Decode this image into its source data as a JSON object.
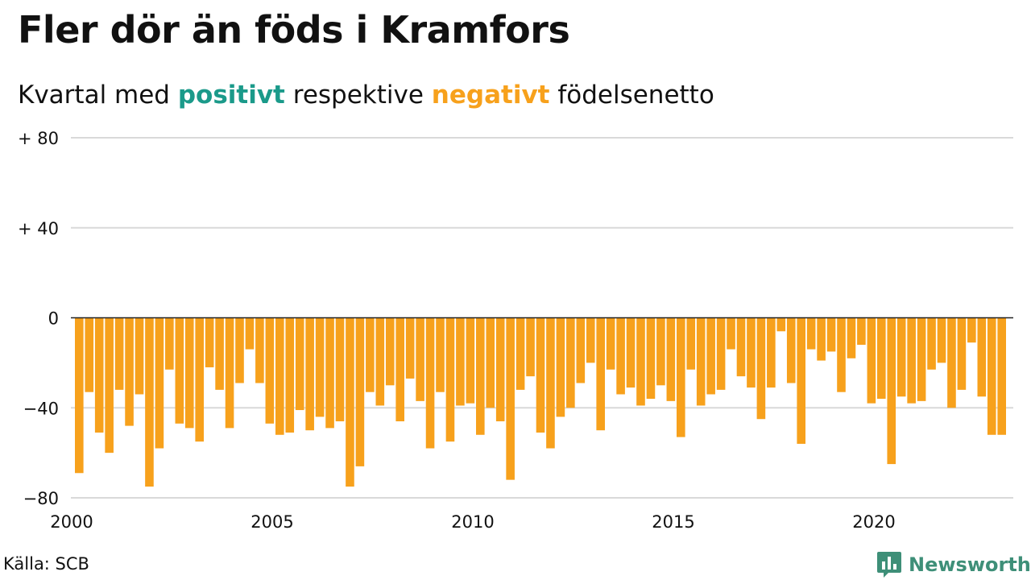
{
  "title": "Fler dör än föds i Kramfors",
  "subtitle": {
    "prefix": "Kvartal med",
    "positive_word": "positivt",
    "middle": "respektive",
    "negative_word": "negativt",
    "suffix": "födelsenetto"
  },
  "colors": {
    "positive": "#1b9a8a",
    "negative": "#f7a11c",
    "grid": "#d9d9d9",
    "zero_line": "#222222",
    "brand": "#3e8f78"
  },
  "source": "Källa: SCB",
  "brand": {
    "name": "Newsworthy",
    "icon": "bar-chart-speech-bubble-icon"
  },
  "chart_data": {
    "type": "bar",
    "ylim": [
      -80,
      80
    ],
    "y_ticks": [
      {
        "value": 80,
        "label": "+ 80"
      },
      {
        "value": 40,
        "label": "+ 40"
      },
      {
        "value": 0,
        "label": "0"
      },
      {
        "value": -40,
        "label": "−40"
      },
      {
        "value": -80,
        "label": "−80"
      }
    ],
    "x_ticks": [
      "2000",
      "2005",
      "2010",
      "2015",
      "2020"
    ],
    "x_start_year": 2000,
    "grid": true,
    "legend": "none",
    "values": [
      -69,
      -33,
      -51,
      -60,
      -32,
      -48,
      -34,
      -75,
      -58,
      -23,
      -47,
      -49,
      -55,
      -22,
      -32,
      -49,
      -29,
      -14,
      -29,
      -47,
      -52,
      -51,
      -41,
      -50,
      -44,
      -49,
      -46,
      -75,
      -66,
      -33,
      -39,
      -30,
      -46,
      -27,
      -37,
      -58,
      -33,
      -55,
      -39,
      -38,
      -52,
      -40,
      -46,
      -72,
      -32,
      -26,
      -51,
      -58,
      -44,
      -40,
      -29,
      -20,
      -50,
      -23,
      -34,
      -31,
      -39,
      -36,
      -30,
      -37,
      -53,
      -23,
      -39,
      -34,
      -32,
      -14,
      -26,
      -31,
      -45,
      -31,
      -6,
      -29,
      -56,
      -14,
      -19,
      -15,
      -33,
      -18,
      -12,
      -38,
      -36,
      -65,
      -35,
      -38,
      -37,
      -23,
      -20,
      -40,
      -32,
      -11,
      -35,
      -52,
      -52
    ]
  }
}
